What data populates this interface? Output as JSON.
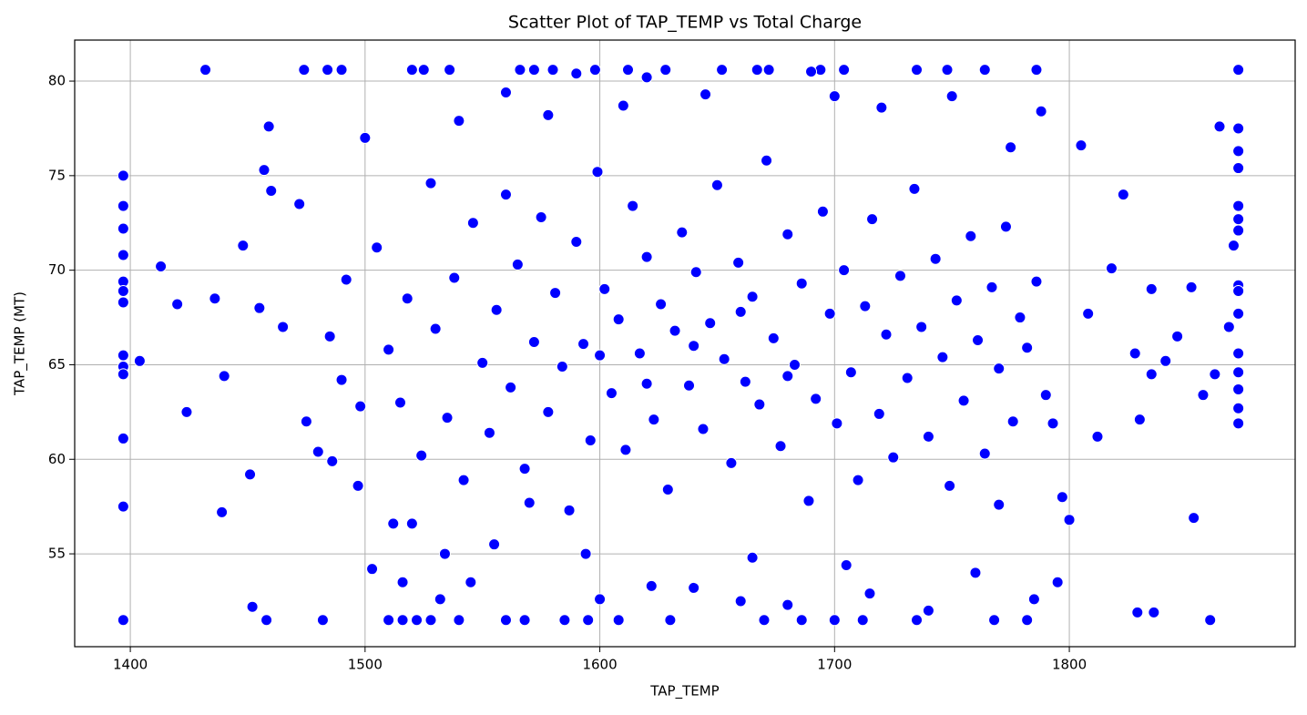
{
  "chart_data": {
    "type": "scatter",
    "title": "Scatter Plot of TAP_TEMP vs Total Charge",
    "x_label": "TAP_TEMP",
    "y_label": "TAP_TEMP (MT)",
    "xlim": [
      1376.3,
      1896.2
    ],
    "ylim": [
      50.09,
      82.17
    ],
    "xticks": [
      1400,
      1500,
      1600,
      1700,
      1800
    ],
    "yticks": [
      55,
      60,
      65,
      70,
      75,
      80
    ],
    "grid": true,
    "x": [
      1397,
      1397,
      1397,
      1397,
      1397,
      1397,
      1397,
      1397,
      1397,
      1397,
      1397,
      1397,
      1397,
      1872,
      1872,
      1872,
      1872,
      1872,
      1872,
      1872,
      1872,
      1872,
      1872,
      1872,
      1872,
      1872,
      1872,
      1872,
      1432,
      1474,
      1484,
      1490,
      1520,
      1525,
      1536,
      1566,
      1572,
      1580,
      1598,
      1612,
      1628,
      1652,
      1667,
      1672,
      1694,
      1704,
      1735,
      1748,
      1764,
      1786,
      1458,
      1482,
      1510,
      1516,
      1522,
      1528,
      1540,
      1560,
      1568,
      1585,
      1595,
      1608,
      1630,
      1670,
      1686,
      1700,
      1712,
      1735,
      1768,
      1782,
      1860,
      1404,
      1413,
      1420,
      1424,
      1436,
      1440,
      1439,
      1448,
      1451,
      1452,
      1455,
      1457,
      1459,
      1460,
      1465,
      1472,
      1475,
      1480,
      1486,
      1490,
      1497,
      1500,
      1503,
      1512,
      1516,
      1520,
      1532,
      1534,
      1540,
      1545,
      1555,
      1560,
      1570,
      1578,
      1590,
      1594,
      1600,
      1610,
      1620,
      1622,
      1640,
      1645,
      1660,
      1665,
      1680,
      1690,
      1700,
      1705,
      1715,
      1720,
      1740,
      1750,
      1760,
      1770,
      1775,
      1785,
      1788,
      1795,
      1800,
      1805,
      1812,
      1818,
      1823,
      1828,
      1830,
      1835,
      1835,
      1841,
      1846,
      1852,
      1853,
      1857,
      1862,
      1864,
      1868,
      1870,
      1829,
      1836,
      1797,
      1808,
      1485,
      1492,
      1498,
      1505,
      1510,
      1515,
      1518,
      1524,
      1528,
      1530,
      1535,
      1538,
      1542,
      1546,
      1550,
      1553,
      1556,
      1560,
      1562,
      1565,
      1568,
      1572,
      1575,
      1578,
      1581,
      1584,
      1587,
      1590,
      1593,
      1596,
      1599,
      1602,
      1605,
      1608,
      1611,
      1614,
      1617,
      1620,
      1623,
      1626,
      1629,
      1632,
      1635,
      1638,
      1641,
      1644,
      1647,
      1650,
      1653,
      1656,
      1659,
      1662,
      1665,
      1668,
      1671,
      1674,
      1677,
      1680,
      1683,
      1686,
      1689,
      1692,
      1695,
      1698,
      1701,
      1704,
      1707,
      1710,
      1713,
      1716,
      1719,
      1722,
      1725,
      1728,
      1731,
      1734,
      1737,
      1740,
      1743,
      1746,
      1749,
      1752,
      1755,
      1758,
      1761,
      1764,
      1767,
      1770,
      1773,
      1776,
      1779,
      1782,
      1786,
      1790,
      1793,
      1600,
      1640,
      1680,
      1620,
      1660
    ],
    "series": [
      {
        "name": "TAP_TEMP (MT)",
        "color": "#0000ff",
        "values": [
          75.0,
          73.4,
          72.2,
          70.8,
          69.4,
          68.9,
          68.3,
          65.5,
          64.9,
          64.5,
          61.1,
          57.5,
          51.5,
          80.6,
          77.5,
          76.3,
          75.4,
          73.4,
          72.7,
          72.1,
          69.2,
          68.9,
          67.7,
          65.6,
          64.6,
          63.7,
          62.7,
          61.9,
          80.6,
          80.6,
          80.6,
          80.6,
          80.6,
          80.6,
          80.6,
          80.6,
          80.6,
          80.6,
          80.6,
          80.6,
          80.6,
          80.6,
          80.6,
          80.6,
          80.6,
          80.6,
          80.6,
          80.6,
          80.6,
          80.6,
          51.5,
          51.5,
          51.5,
          51.5,
          51.5,
          51.5,
          51.5,
          51.5,
          51.5,
          51.5,
          51.5,
          51.5,
          51.5,
          51.5,
          51.5,
          51.5,
          51.5,
          51.5,
          51.5,
          51.5,
          51.5,
          65.2,
          70.2,
          68.2,
          62.5,
          68.5,
          64.4,
          57.2,
          71.3,
          59.2,
          52.2,
          68,
          75.3,
          77.6,
          74.2,
          67,
          73.5,
          62,
          60.4,
          59.9,
          64.2,
          58.6,
          77,
          54.2,
          56.6,
          53.5,
          56.6,
          52.6,
          55,
          77.9,
          53.5,
          55.5,
          79.4,
          57.7,
          78.2,
          80.4,
          55,
          52.6,
          78.7,
          80.2,
          53.3,
          53.2,
          79.3,
          52.5,
          54.8,
          52.3,
          80.5,
          79.2,
          54.4,
          52.9,
          78.6,
          52,
          79.2,
          54,
          57.6,
          76.5,
          52.6,
          78.4,
          53.5,
          56.8,
          76.6,
          61.2,
          70.1,
          74,
          65.6,
          62.1,
          64.5,
          69,
          65.2,
          66.5,
          69.1,
          56.9,
          63.4,
          64.5,
          77.6,
          67,
          71.3,
          51.9,
          51.9,
          58,
          67.7,
          66.5,
          69.5,
          62.8,
          71.2,
          65.8,
          63,
          68.5,
          60.2,
          74.6,
          66.9,
          62.2,
          69.6,
          58.9,
          72.5,
          65.1,
          61.4,
          67.9,
          74,
          63.8,
          70.3,
          59.5,
          66.2,
          72.8,
          62.5,
          68.8,
          64.9,
          57.3,
          71.5,
          66.1,
          61,
          75.2,
          69,
          63.5,
          67.4,
          60.5,
          73.4,
          65.6,
          70.7,
          62.1,
          68.2,
          58.4,
          66.8,
          72,
          63.9,
          69.9,
          61.6,
          67.2,
          74.5,
          65.3,
          59.8,
          70.4,
          64.1,
          68.6,
          62.9,
          75.8,
          66.4,
          60.7,
          71.9,
          65,
          69.3,
          57.8,
          63.2,
          73.1,
          67.7,
          61.9,
          70,
          64.6,
          58.9,
          68.1,
          72.7,
          62.4,
          66.6,
          60.1,
          69.7,
          64.3,
          74.3,
          67,
          61.2,
          70.6,
          65.4,
          58.6,
          68.4,
          63.1,
          71.8,
          66.3,
          60.3,
          69.1,
          64.8,
          72.3,
          62,
          67.5,
          65.9,
          69.4,
          63.4,
          61.9,
          65.5,
          66,
          64.4,
          64,
          67.8
        ]
      }
    ]
  }
}
